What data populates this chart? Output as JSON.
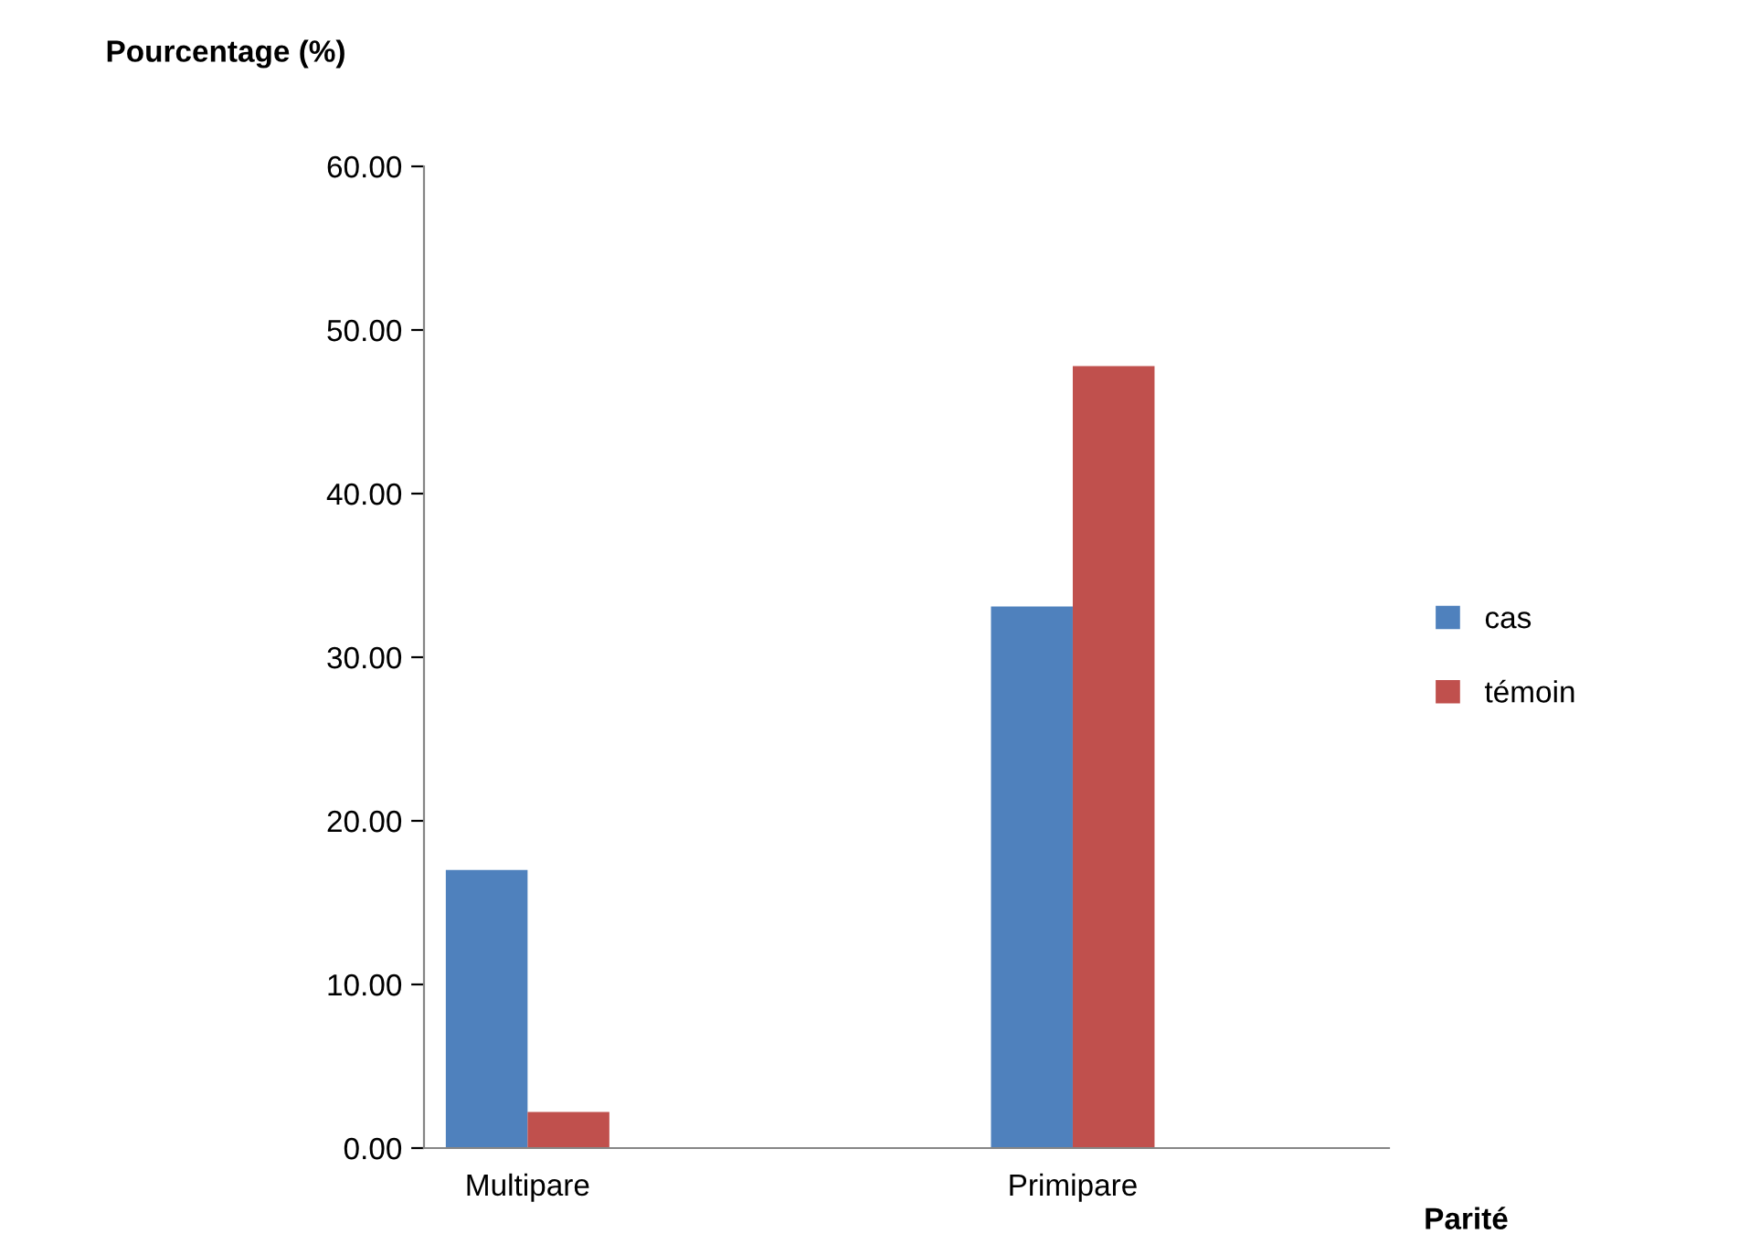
{
  "chart_data": {
    "type": "bar",
    "ylabel": "Pourcentage (%)",
    "xlabel": "Parité",
    "categories": [
      "Multipare",
      "Primipare"
    ],
    "series": [
      {
        "name": "cas",
        "color": "#4f81bd",
        "values": [
          17.0,
          33.1
        ]
      },
      {
        "name": "témoin",
        "color": "#c0504d",
        "values": [
          2.2,
          47.8
        ]
      }
    ],
    "ylim": [
      0,
      60
    ],
    "yticks": [
      {
        "value": 0,
        "label": "0.00"
      },
      {
        "value": 10,
        "label": "10.00"
      },
      {
        "value": 20,
        "label": "20.00"
      },
      {
        "value": 30,
        "label": "30.00"
      },
      {
        "value": 40,
        "label": "40.00"
      },
      {
        "value": 50,
        "label": "50.00"
      },
      {
        "value": 60,
        "label": "60.00"
      }
    ],
    "grid": false,
    "legend": "right"
  }
}
